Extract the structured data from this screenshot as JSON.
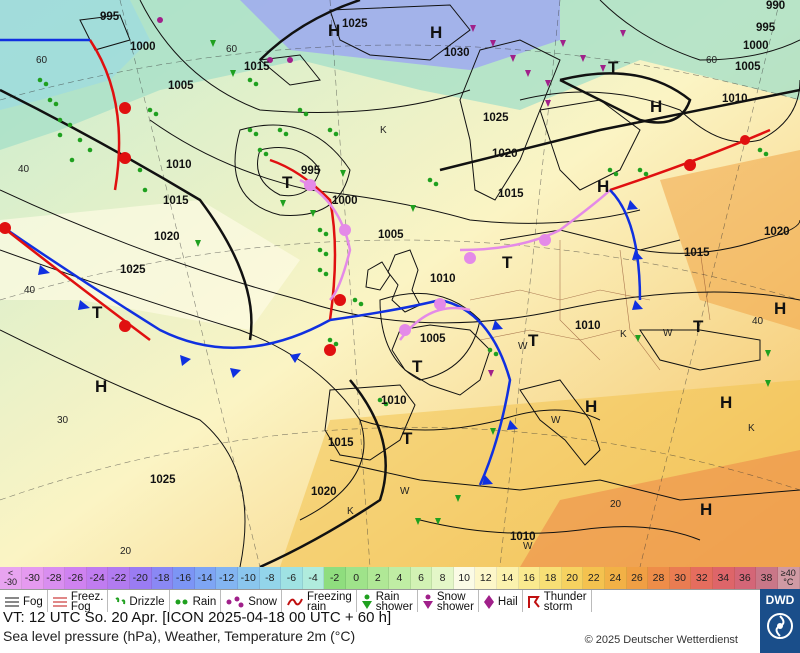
{
  "map": {
    "pressure_labels": [
      "995",
      "1000",
      "1025",
      "990",
      "995",
      "1000",
      "1005",
      "1030",
      "1005",
      "1025",
      "1010",
      "1010",
      "1015",
      "995",
      "1000",
      "1020",
      "1015",
      "1020",
      "1015",
      "1005",
      "1025",
      "1010",
      "1020",
      "1015",
      "1010",
      "1005",
      "1010",
      "1015",
      "1025",
      "1020",
      "1010"
    ],
    "hl_labels": [
      "H",
      "H",
      "T",
      "H",
      "T",
      "H",
      "T",
      "T",
      "T",
      "H",
      "T",
      "H",
      "T",
      "H",
      "T",
      "H",
      "H"
    ],
    "temp_labels": [
      "60",
      "60",
      "40",
      "40",
      "30",
      "20",
      "20",
      "40",
      "60",
      "K",
      "K",
      "K",
      "K",
      "W",
      "W",
      "W",
      "W",
      "W"
    ]
  },
  "scale": {
    "low_top": "<",
    "low_bottom": "-30",
    "values": [
      "-30",
      "-28",
      "-26",
      "-24",
      "-22",
      "-20",
      "-18",
      "-16",
      "-14",
      "-12",
      "-10",
      "-8",
      "-6",
      "-4",
      "-2",
      "0",
      "2",
      "4",
      "6",
      "8",
      "10",
      "12",
      "14",
      "16",
      "18",
      "20",
      "22",
      "24",
      "26",
      "28",
      "30",
      "32",
      "34",
      "36",
      "38"
    ],
    "colors": [
      "#e59af0",
      "#d98ef0",
      "#cf82f0",
      "#c07cf0",
      "#b27bf0",
      "#9a7cf3",
      "#8a88f4",
      "#7c95f5",
      "#7ea5f4",
      "#83b5f2",
      "#8ac6ee",
      "#93d5ea",
      "#9fe2e3",
      "#b0ecdd",
      "#8fdd7e",
      "#9fe38a",
      "#b0e896",
      "#c0eda4",
      "#d2f2b4",
      "#e4f7c8",
      "#fbfbe6",
      "#fdf7c9",
      "#fbf2ae",
      "#faea8f",
      "#f8df75",
      "#f6d260",
      "#f4c24f",
      "#f2b146",
      "#f09f44",
      "#ee8d49",
      "#ea7c52",
      "#e56d5e",
      "#de6569",
      "#d46677",
      "#c97788"
    ],
    "high_top": "≥40",
    "high_bottom": "°C"
  },
  "legend": [
    {
      "icon": "fog-icon",
      "label": "Fog"
    },
    {
      "icon": "freezing-fog-icon",
      "label": "Freez.\nFog"
    },
    {
      "icon": "drizzle-icon",
      "label": "Drizzle"
    },
    {
      "icon": "rain-icon",
      "label": "Rain"
    },
    {
      "icon": "snow-icon",
      "label": "Snow"
    },
    {
      "icon": "freezing-rain-icon",
      "label": "Freezing\nrain"
    },
    {
      "icon": "rain-shower-icon",
      "label": "Rain\nshower"
    },
    {
      "icon": "snow-shower-icon",
      "label": "Snow\nshower"
    },
    {
      "icon": "hail-icon",
      "label": "Hail"
    },
    {
      "icon": "thunderstorm-icon",
      "label": "Thunder\nstorm"
    }
  ],
  "info": {
    "valid_time": "VT: 12 UTC So.  20 Apr. [ICON 2025-04-18  00 UTC + 60 h]",
    "description": "Sea level pressure (hPa), Weather, Temperature 2m (°C)",
    "copyright": "© 2025 Deutscher Wetterdienst",
    "logo": "DWD"
  },
  "colors": {
    "cold_front": "#1030e0",
    "warm_front": "#e01010",
    "occluded_front": "#e48ae8",
    "isobar": "#111111",
    "rain_symbol": "#1fa01f",
    "snow_symbol": "#a0208a"
  }
}
